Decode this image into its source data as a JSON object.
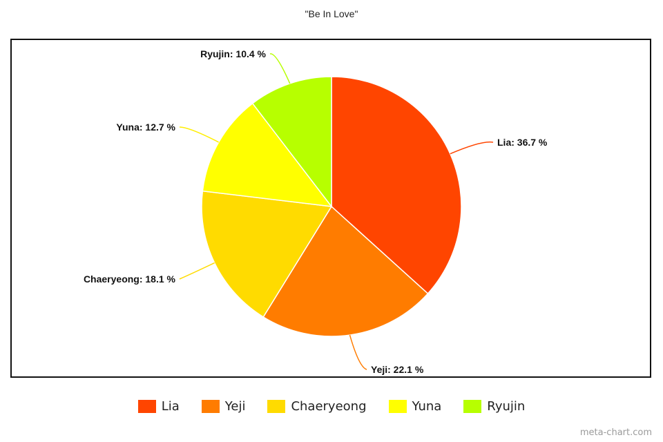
{
  "chart_data": {
    "type": "pie",
    "title": "\"Be In Love\"",
    "categories": [
      "Lia",
      "Yeji",
      "Chaeryeong",
      "Yuna",
      "Ryujin"
    ],
    "values": [
      36.7,
      22.1,
      18.1,
      12.7,
      10.4
    ],
    "labels": [
      "Lia: 36.7 %",
      "Yeji: 22.1 %",
      "Chaeryeong: 18.1 %",
      "Yuna: 12.7 %",
      "Ryujin: 10.4 %"
    ],
    "colors": [
      "#ff4500",
      "#ff7c00",
      "#ffdb00",
      "#ffff00",
      "#b7ff00"
    ],
    "legend_position": "bottom"
  },
  "watermark": "meta-chart.com"
}
